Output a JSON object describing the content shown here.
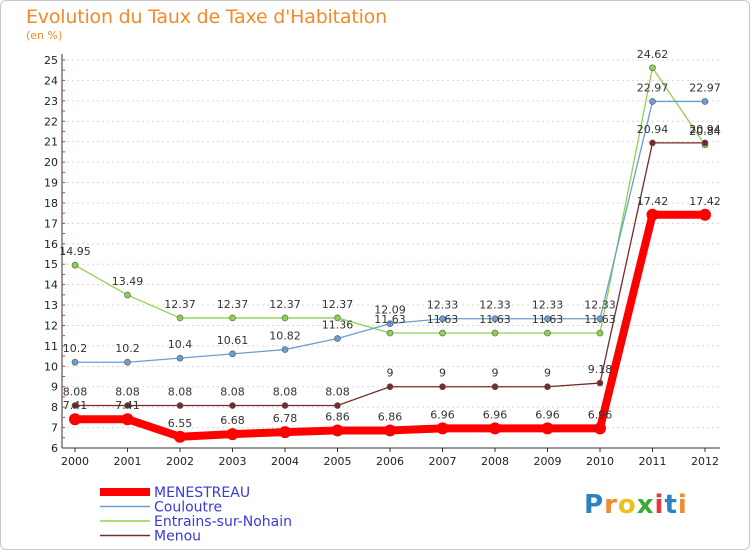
{
  "header": {
    "title": "Evolution du Taux de Taxe d'Habitation",
    "subtitle": "(en %)"
  },
  "logo": {
    "text": "Proxiti",
    "letters": [
      "P",
      "r",
      "o",
      "x",
      "i",
      "t",
      "i"
    ],
    "colors": [
      "#2b83c5",
      "#f28a2a",
      "#e8c21b",
      "#3aa935",
      "#e03a3a",
      "#2b83c5",
      "#f28a2a"
    ]
  },
  "chart_data": {
    "type": "line",
    "title": "Evolution du Taux de Taxe d'Habitation",
    "ylabel": "(en %)",
    "xlabel": "",
    "x": [
      "2000",
      "2001",
      "2002",
      "2003",
      "2004",
      "2005",
      "2006",
      "2007",
      "2008",
      "2009",
      "2010",
      "2011",
      "2012"
    ],
    "ylim": [
      6,
      25
    ],
    "yticks": [
      6,
      7,
      8,
      9,
      10,
      11,
      12,
      13,
      14,
      15,
      16,
      17,
      18,
      19,
      20,
      21,
      22,
      23,
      24,
      25
    ],
    "grid": "horizontal dashed",
    "legend_placement": "bottom-left",
    "series": [
      {
        "name": "MENESTREAU",
        "color": "#ff0000",
        "values": [
          7.41,
          7.41,
          6.55,
          6.68,
          6.78,
          6.86,
          6.86,
          6.96,
          6.96,
          6.96,
          6.96,
          17.42,
          17.42
        ],
        "labels": [
          "7.41",
          "7.41",
          "6.55",
          "6.68",
          "6.78",
          "6.86",
          "6.86",
          "6.96",
          "6.96",
          "6.96",
          "6.96",
          "17.42",
          "17.42"
        ]
      },
      {
        "name": "Couloutre",
        "color": "#6a9fd4",
        "values": [
          10.2,
          10.2,
          10.4,
          10.61,
          10.82,
          11.36,
          12.09,
          12.33,
          12.33,
          12.33,
          12.33,
          22.97,
          22.97
        ],
        "labels": [
          "10.2",
          "10.2",
          "10.4",
          "10.61",
          "10.82",
          "11.36",
          "12.09",
          "12.33",
          "12.33",
          "12.33",
          "12.33",
          "22.97",
          "22.97"
        ]
      },
      {
        "name": "Entrains-sur-Nohain",
        "color": "#8fd14f",
        "values": [
          14.95,
          13.49,
          12.37,
          12.37,
          12.37,
          12.37,
          11.63,
          11.63,
          11.63,
          11.63,
          11.63,
          24.62,
          20.84
        ],
        "labels": [
          "14.95",
          "13.49",
          "12.37",
          "12.37",
          "12.37",
          "12.37",
          "11.63",
          "11.63",
          "11.63",
          "11.63",
          "11.63",
          "24.62",
          "20.84"
        ]
      },
      {
        "name": "Menou",
        "color": "#7a2a2a",
        "values": [
          8.08,
          8.08,
          8.08,
          8.08,
          8.08,
          8.08,
          9,
          9,
          9,
          9,
          9.18,
          20.94,
          20.94
        ],
        "labels": [
          "8.08",
          "8.08",
          "8.08",
          "8.08",
          "8.08",
          "8.08",
          "9",
          "9",
          "9",
          "9",
          "9.18",
          "20.94",
          "20.94"
        ]
      }
    ]
  }
}
